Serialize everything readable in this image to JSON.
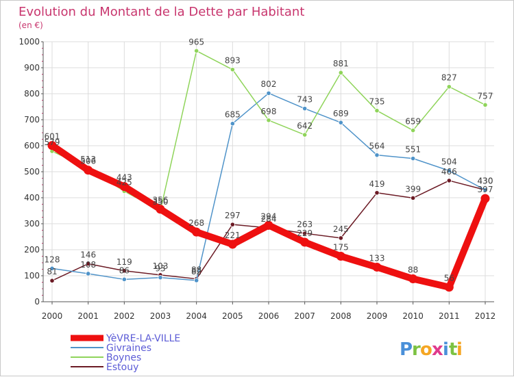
{
  "chart_data": {
    "type": "line",
    "title": "Evolution du Montant de la Dette par Habitant",
    "subtitle": "(en €)",
    "xlabel": "",
    "ylabel": "",
    "ylim": [
      0,
      1000
    ],
    "yticks": [
      0,
      100,
      200,
      300,
      400,
      500,
      600,
      700,
      800,
      900,
      1000
    ],
    "x": [
      "2000",
      "2001",
      "2002",
      "2003",
      "2004",
      "2005",
      "2006",
      "2007",
      "2008",
      "2009",
      "2010",
      "2011",
      "2012"
    ],
    "series": [
      {
        "name": "Estouy",
        "color": "#6b1a24",
        "values": [
          81,
          146,
          119,
          103,
          88,
          297,
          284,
          263,
          245,
          419,
          399,
          466,
          430
        ]
      },
      {
        "name": "Givraines",
        "color": "#4f93c9",
        "values": [
          128,
          108,
          86,
          93,
          82,
          685,
          802,
          743,
          689,
          564,
          551,
          504,
          430
        ]
      },
      {
        "name": "Boynes",
        "color": "#8fd45a",
        "values": [
          579,
          513,
          425,
          350,
          965,
          893,
          698,
          642,
          881,
          735,
          659,
          827,
          757
        ]
      },
      {
        "name": "YèVRE-LA-VILLE",
        "color": "#ee1010",
        "values": [
          601,
          506,
          443,
          356,
          268,
          221,
          294,
          229,
          175,
          133,
          88,
          56,
          397
        ]
      }
    ],
    "legend": [
      "YèVRE-LA-VILLE",
      "Givraines",
      "Boynes",
      "Estouy"
    ],
    "legend_position": "bottom-left"
  },
  "branding": {
    "logo_letters": [
      "P",
      "r",
      "o",
      "x",
      "i",
      "t",
      "i"
    ],
    "logo_colors": [
      "#4a90d9",
      "#7cc242",
      "#f5a623",
      "#e03a8c",
      "#4a90d9",
      "#7cc242",
      "#f5a623"
    ]
  }
}
